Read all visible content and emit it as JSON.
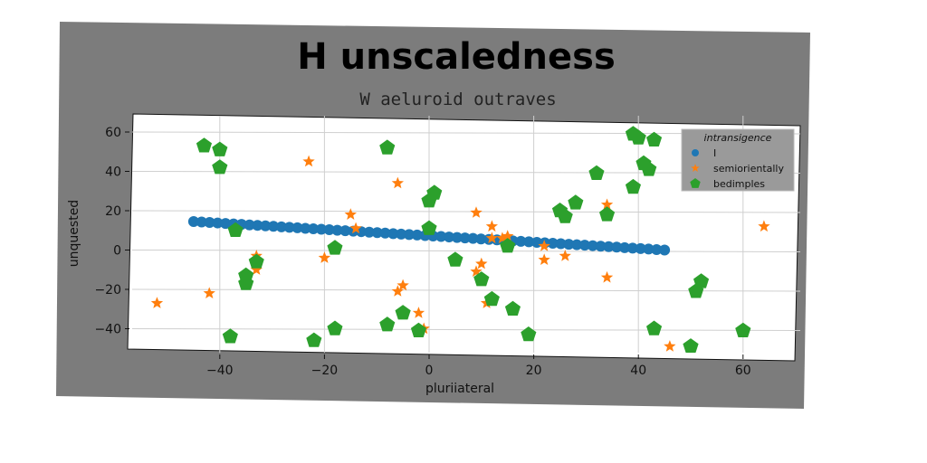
{
  "chart_data": {
    "type": "scatter",
    "title": "H unscaledness",
    "subtitle": "W aeluroid outraves",
    "xlabel": "pluriiateral",
    "ylabel": "unquested",
    "xlim": [
      -58,
      70
    ],
    "ylim": [
      -50,
      65
    ],
    "xticks": [
      -40,
      -20,
      0,
      20,
      40,
      60
    ],
    "yticks": [
      -40,
      -20,
      0,
      20,
      40,
      60
    ],
    "tick_labels_x": [
      "−40",
      "−20",
      "0",
      "20",
      "40",
      "60"
    ],
    "tick_labels_y": [
      "−40",
      "−20",
      "0",
      "20",
      "40",
      "60"
    ],
    "grid": true,
    "legend": {
      "title": "intransigence",
      "placement": "top-right"
    },
    "series": [
      {
        "name": "I",
        "marker": "circle",
        "color": "#1f77b4",
        "x_start": -45,
        "x_end": 45,
        "y_start": 14.5,
        "y_end": 0,
        "n_points": 60
      },
      {
        "name": "semiorientally",
        "marker": "star",
        "color": "#ff7f0e",
        "points": [
          [
            -52,
            -27
          ],
          [
            -42,
            -22
          ],
          [
            -33,
            -3
          ],
          [
            -33,
            -10
          ],
          [
            -23,
            45
          ],
          [
            -20,
            -4
          ],
          [
            -15,
            18
          ],
          [
            -14,
            11
          ],
          [
            -6,
            34
          ],
          [
            -6,
            -21
          ],
          [
            -5,
            -18
          ],
          [
            -2,
            -32
          ],
          [
            -1,
            -40
          ],
          [
            9,
            19
          ],
          [
            9,
            -11
          ],
          [
            10,
            -7
          ],
          [
            11,
            -27
          ],
          [
            12,
            12
          ],
          [
            12,
            6
          ],
          [
            14,
            6
          ],
          [
            15,
            7
          ],
          [
            22,
            2
          ],
          [
            22,
            -5
          ],
          [
            26,
            -3
          ],
          [
            34,
            23
          ],
          [
            34,
            -14
          ],
          [
            46,
            -49
          ],
          [
            64,
            12
          ]
        ]
      },
      {
        "name": "bedimples",
        "marker": "pentagon",
        "color": "#2ca02c",
        "points": [
          [
            -43,
            53
          ],
          [
            -40,
            51
          ],
          [
            -40,
            42
          ],
          [
            -37,
            10
          ],
          [
            -35,
            -13
          ],
          [
            -35,
            -17
          ],
          [
            -33,
            -6
          ],
          [
            -38,
            -44
          ],
          [
            -22,
            -46
          ],
          [
            -18,
            1
          ],
          [
            -18,
            -40
          ],
          [
            -8,
            -38
          ],
          [
            -8,
            52
          ],
          [
            -5,
            -32
          ],
          [
            -2,
            -41
          ],
          [
            0,
            25
          ],
          [
            1,
            29
          ],
          [
            0,
            11
          ],
          [
            5,
            -5
          ],
          [
            10,
            -15
          ],
          [
            12,
            -25
          ],
          [
            15,
            2
          ],
          [
            16,
            -30
          ],
          [
            19,
            -43
          ],
          [
            25,
            20
          ],
          [
            26,
            17
          ],
          [
            28,
            24
          ],
          [
            32,
            39
          ],
          [
            34,
            18
          ],
          [
            39,
            59
          ],
          [
            40,
            57
          ],
          [
            41,
            44
          ],
          [
            42,
            41
          ],
          [
            43,
            56
          ],
          [
            39,
            32
          ],
          [
            43,
            -40
          ],
          [
            50,
            -49
          ],
          [
            51,
            -21
          ],
          [
            52,
            -16
          ],
          [
            60,
            -41
          ]
        ]
      }
    ]
  }
}
